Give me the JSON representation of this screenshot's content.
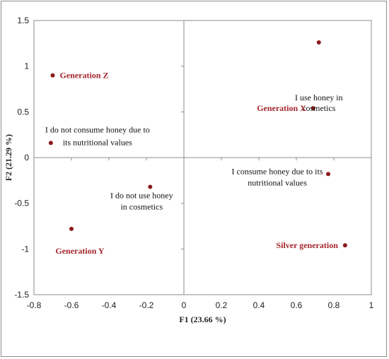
{
  "chart_data": {
    "type": "scatter",
    "xlabel": "F1 (23.66 %)",
    "ylabel": "F2 (21.29 %)",
    "xlim": [
      -0.8,
      1
    ],
    "ylim": [
      -1.5,
      1.5
    ],
    "x_ticks": [
      "-0.8",
      "-0.6",
      "-0.4",
      "-0.2",
      "0",
      "0.2",
      "0.4",
      "0.6",
      "0.8",
      "1"
    ],
    "y_ticks": [
      "1.5",
      "1",
      "0.5",
      "0",
      "-0.5",
      "-1",
      "-1.5"
    ],
    "grid": false,
    "marker_color": "#8b1a1a",
    "series": [
      {
        "points": [
          {
            "label": "I use honey in cosmetics",
            "x": 0.72,
            "y": 1.26,
            "style": "plain"
          },
          {
            "label": "Generation X",
            "x": 0.69,
            "y": 0.54,
            "style": "highlight"
          },
          {
            "label": "Generation Z",
            "x": -0.7,
            "y": 0.9,
            "style": "highlight"
          },
          {
            "label": "I do not consume honey due to its nutritional values",
            "x": -0.71,
            "y": 0.16,
            "style": "plain"
          },
          {
            "label": "I consume honey due to its nutritional values",
            "x": 0.77,
            "y": -0.18,
            "style": "plain"
          },
          {
            "label": "I do not use honey in cosmetics",
            "x": -0.18,
            "y": -0.32,
            "style": "plain"
          },
          {
            "label": "Generation Y",
            "x": -0.6,
            "y": -0.78,
            "style": "highlight"
          },
          {
            "label": "Silver generation",
            "x": 0.86,
            "y": -0.96,
            "style": "highlight"
          }
        ]
      }
    ],
    "label_color": "#a4262c"
  }
}
